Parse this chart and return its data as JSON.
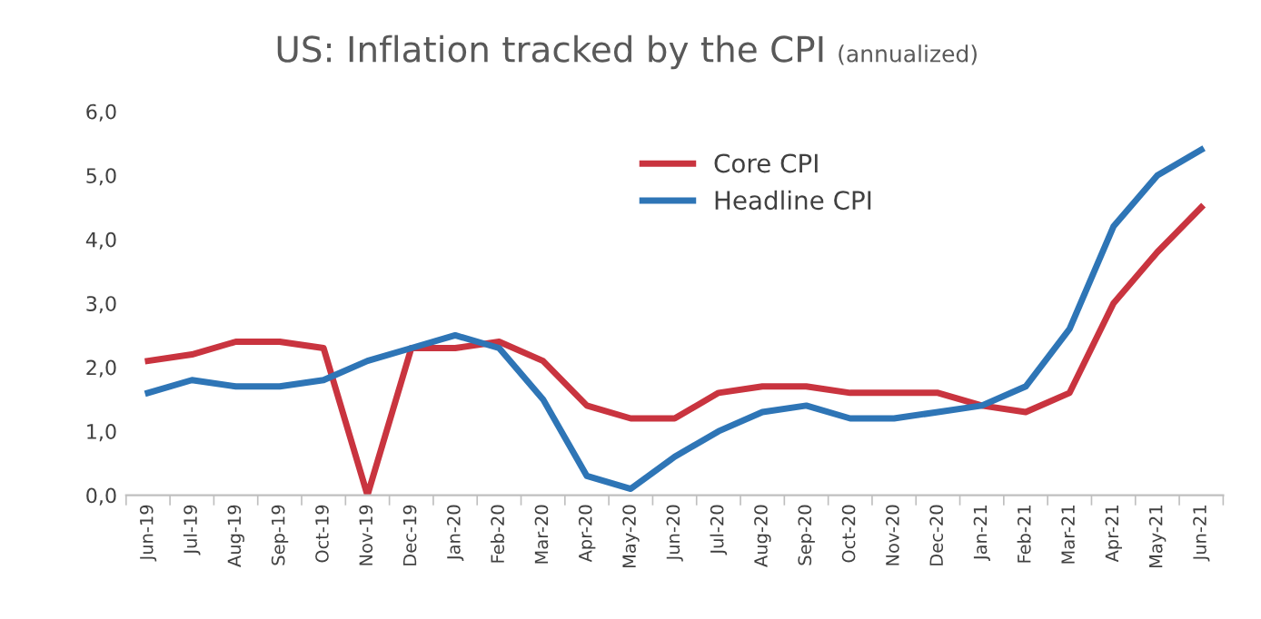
{
  "chart_data": {
    "type": "line",
    "title": "US: Inflation tracked by the CPI",
    "subtitle": "(annualized)",
    "categories": [
      "Jun-19",
      "Jul-19",
      "Aug-19",
      "Sep-19",
      "Oct-19",
      "Nov-19",
      "Dec-19",
      "Jan-20",
      "Feb-20",
      "Mar-20",
      "Apr-20",
      "May-20",
      "Jun-20",
      "Jul-20",
      "Aug-20",
      "Sep-20",
      "Oct-20",
      "Nov-20",
      "Dec-20",
      "Jan-21",
      "Feb-21",
      "Mar-21",
      "Apr-21",
      "May-21",
      "Jun-21"
    ],
    "series": [
      {
        "name": "Core CPI",
        "color": "#c9343f",
        "values": [
          2.1,
          2.2,
          2.4,
          2.4,
          2.3,
          0.0,
          2.3,
          2.3,
          2.4,
          2.1,
          1.4,
          1.2,
          1.2,
          1.6,
          1.7,
          1.7,
          1.6,
          1.6,
          1.6,
          1.4,
          1.3,
          1.6,
          3.0,
          3.8,
          4.5
        ]
      },
      {
        "name": "Headline CPI",
        "color": "#2e75b6",
        "values": [
          1.6,
          1.8,
          1.7,
          1.7,
          1.8,
          2.1,
          2.3,
          2.5,
          2.3,
          1.5,
          0.3,
          0.1,
          0.6,
          1.0,
          1.3,
          1.4,
          1.2,
          1.2,
          1.3,
          1.4,
          1.7,
          2.6,
          4.2,
          5.0,
          5.4
        ]
      }
    ],
    "ylim": [
      0,
      6
    ],
    "yticks": [
      {
        "value": 0,
        "label": "0,0"
      },
      {
        "value": 1,
        "label": "1,0"
      },
      {
        "value": 2,
        "label": "2,0"
      },
      {
        "value": 3,
        "label": "3,0"
      },
      {
        "value": 4,
        "label": "4,0"
      },
      {
        "value": 5,
        "label": "5,0"
      },
      {
        "value": 6,
        "label": "6,0"
      }
    ],
    "grid": false,
    "legend": "top",
    "marker": "none",
    "line_style": "solid"
  }
}
